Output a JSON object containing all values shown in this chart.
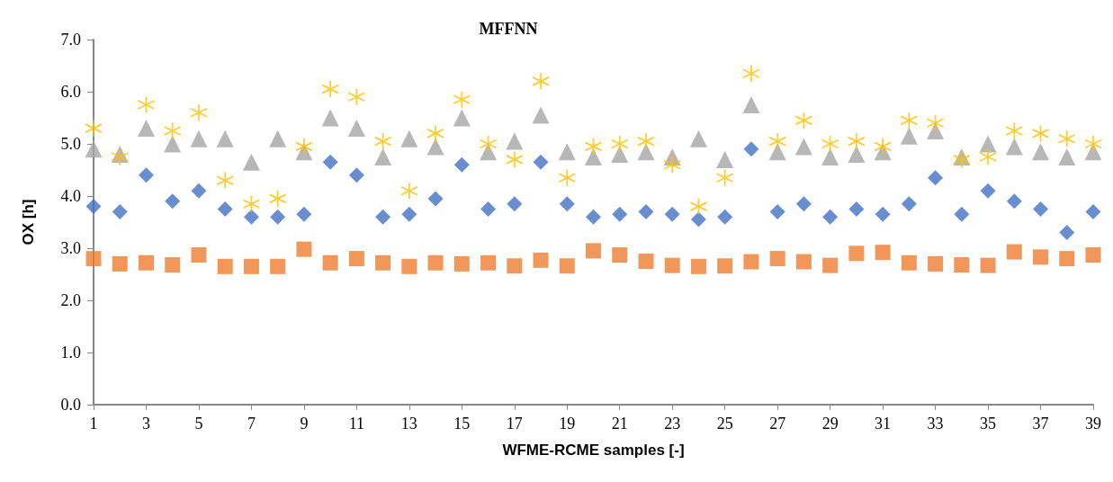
{
  "chart_data": {
    "type": "scatter",
    "title": "MFFNN",
    "xlabel": "WFME-RCME samples [-]",
    "ylabel": "OX [h]",
    "x": [
      1,
      2,
      3,
      4,
      5,
      6,
      7,
      8,
      9,
      10,
      11,
      12,
      13,
      14,
      15,
      16,
      17,
      18,
      19,
      20,
      21,
      22,
      23,
      24,
      25,
      26,
      27,
      28,
      29,
      30,
      31,
      32,
      33,
      34,
      35,
      36,
      37,
      38,
      39
    ],
    "xlim": [
      1,
      39
    ],
    "xticks": [
      1,
      3,
      5,
      7,
      9,
      11,
      13,
      15,
      17,
      19,
      21,
      23,
      25,
      27,
      29,
      31,
      33,
      35,
      37,
      39
    ],
    "ylim": [
      0,
      7
    ],
    "yticks": [
      {
        "value": 0,
        "label": "0.0"
      },
      {
        "value": 1,
        "label": "1.0"
      },
      {
        "value": 2,
        "label": "2.0"
      },
      {
        "value": 3,
        "label": "3.0"
      },
      {
        "value": 4,
        "label": "4.0"
      },
      {
        "value": 5,
        "label": "5.0"
      },
      {
        "value": 6,
        "label": "6.0"
      },
      {
        "value": 7,
        "label": "7.0"
      }
    ],
    "grid": false,
    "series": [
      {
        "color": "#4472c4",
        "marker": "diamond",
        "values": [
          3.8,
          3.7,
          4.4,
          3.9,
          4.1,
          3.75,
          3.6,
          3.6,
          3.65,
          4.65,
          4.4,
          3.6,
          3.65,
          3.95,
          4.6,
          3.75,
          3.85,
          4.65,
          3.85,
          3.6,
          3.65,
          3.7,
          3.65,
          3.55,
          3.6,
          4.9,
          3.7,
          3.85,
          3.6,
          3.75,
          3.65,
          3.85,
          4.35,
          3.65,
          4.1,
          3.9,
          3.75,
          3.3,
          3.7
        ]
      },
      {
        "color": "#ed7d31",
        "marker": "square",
        "values": [
          2.8,
          2.7,
          2.72,
          2.68,
          2.87,
          2.65,
          2.65,
          2.65,
          2.98,
          2.72,
          2.8,
          2.72,
          2.65,
          2.72,
          2.7,
          2.72,
          2.66,
          2.77,
          2.66,
          2.95,
          2.87,
          2.75,
          2.67,
          2.65,
          2.66,
          2.74,
          2.8,
          2.74,
          2.67,
          2.9,
          2.92,
          2.72,
          2.7,
          2.68,
          2.67,
          2.93,
          2.83,
          2.8,
          2.87
        ]
      },
      {
        "color": "#a5a5a5",
        "marker": "triangle",
        "values": [
          4.9,
          4.8,
          5.3,
          5.0,
          5.1,
          5.1,
          4.65,
          5.1,
          4.85,
          5.5,
          5.3,
          4.75,
          5.1,
          4.95,
          5.5,
          4.85,
          5.05,
          5.55,
          4.85,
          4.75,
          4.8,
          4.85,
          4.75,
          5.1,
          4.7,
          5.75,
          4.85,
          4.95,
          4.75,
          4.8,
          4.85,
          5.15,
          5.25,
          4.75,
          5.0,
          4.95,
          4.85,
          4.75,
          4.85
        ]
      },
      {
        "color": "#ffc000",
        "marker": "cross",
        "values": [
          5.3,
          4.75,
          5.75,
          5.25,
          5.6,
          4.3,
          3.85,
          3.95,
          4.95,
          6.05,
          5.9,
          5.05,
          4.1,
          5.2,
          5.85,
          5.0,
          4.7,
          6.2,
          4.35,
          4.95,
          5.0,
          5.05,
          4.6,
          3.8,
          4.35,
          6.35,
          5.05,
          5.45,
          5.0,
          5.05,
          4.95,
          5.45,
          5.4,
          4.7,
          4.75,
          5.25,
          5.2,
          5.1,
          5.0
        ]
      }
    ]
  }
}
